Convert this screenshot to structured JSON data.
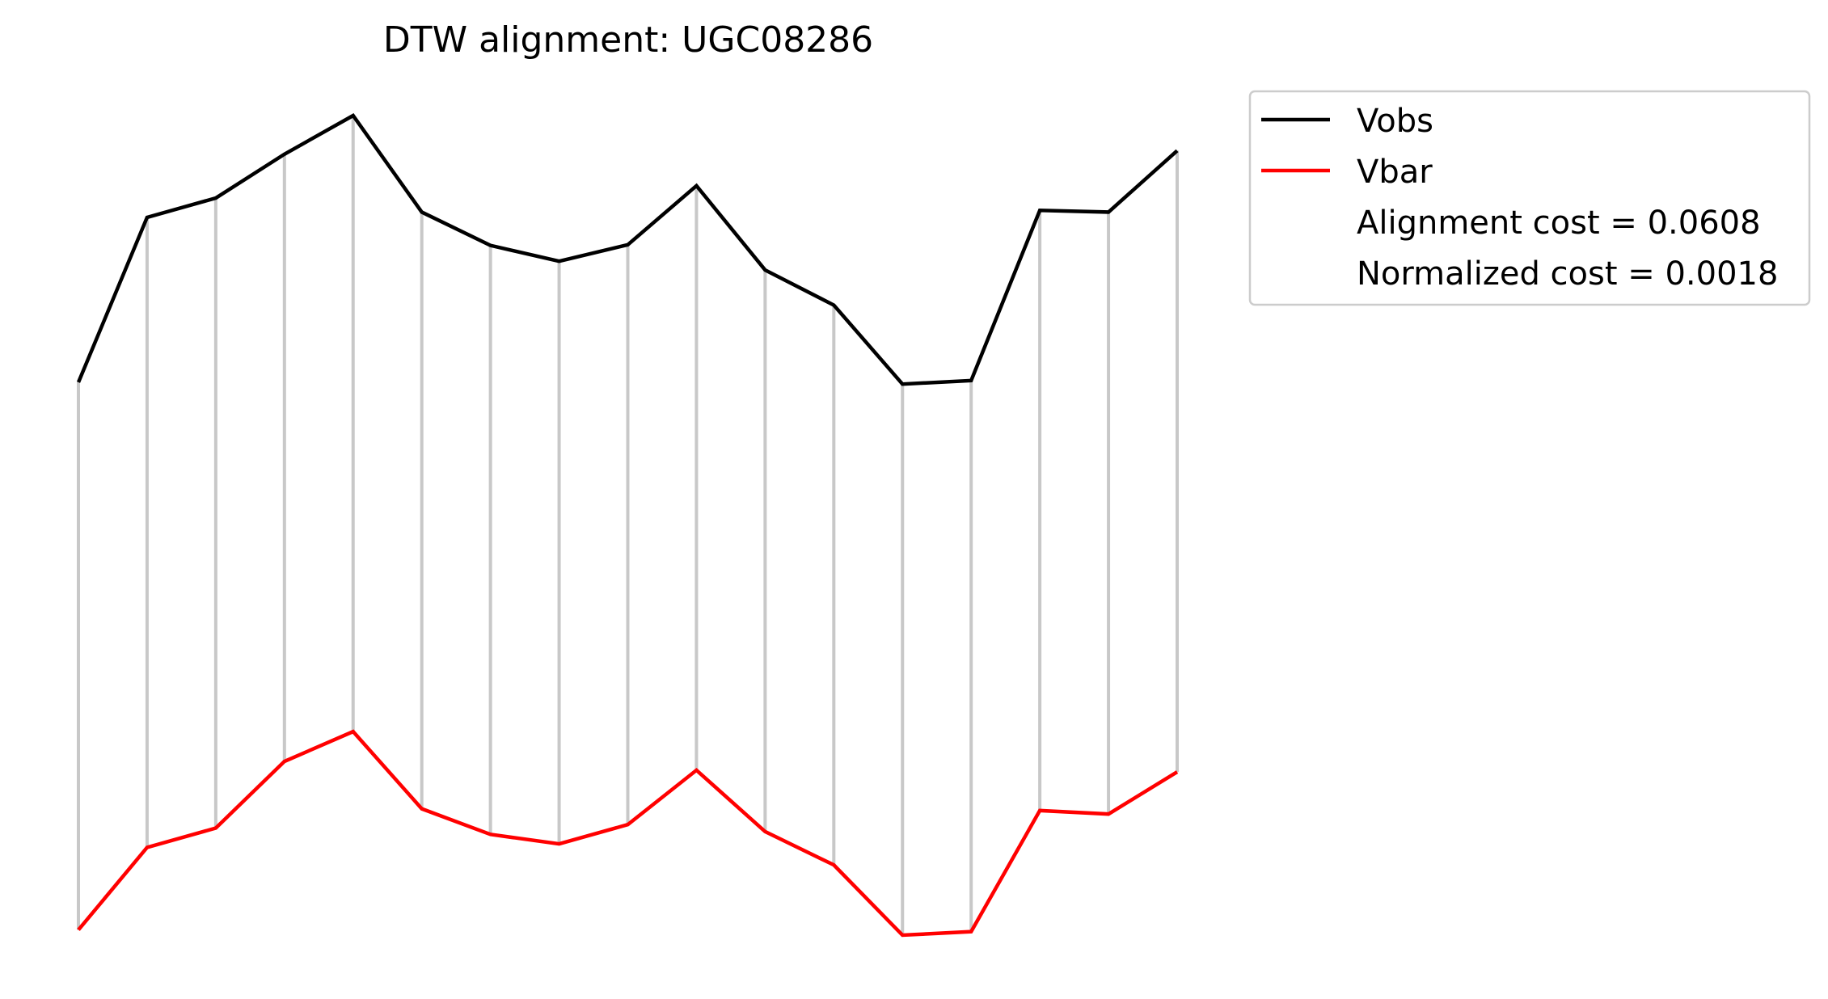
{
  "chart_data": {
    "type": "line",
    "title": "DTW alignment: UGC08286",
    "x": [
      0,
      1,
      2,
      3,
      4,
      5,
      6,
      7,
      8,
      9,
      10,
      11,
      12,
      13,
      14,
      15,
      16
    ],
    "series": [
      {
        "name": "Vobs",
        "color": "#000000",
        "values": [
          0.44,
          0.91,
          0.965,
          1.09,
          1.2,
          0.925,
          0.83,
          0.785,
          0.832,
          1.0,
          0.76,
          0.66,
          0.435,
          0.445,
          0.93,
          0.925,
          1.1
        ]
      },
      {
        "name": "Vbar",
        "color": "#ff0000",
        "values": [
          -1.12,
          -0.885,
          -0.83,
          -0.64,
          -0.555,
          -0.775,
          -0.848,
          -0.875,
          -0.82,
          -0.665,
          -0.84,
          -0.935,
          -1.135,
          -1.125,
          -0.78,
          -0.79,
          -0.67
        ]
      }
    ],
    "alignment_lines": {
      "color": "#c8c8c8",
      "pairs": [
        [
          0,
          0
        ],
        [
          1,
          1
        ],
        [
          2,
          2
        ],
        [
          3,
          3
        ],
        [
          4,
          4
        ],
        [
          5,
          5
        ],
        [
          6,
          6
        ],
        [
          7,
          7
        ],
        [
          8,
          8
        ],
        [
          9,
          9
        ],
        [
          10,
          10
        ],
        [
          11,
          11
        ],
        [
          12,
          12
        ],
        [
          13,
          13
        ],
        [
          14,
          14
        ],
        [
          15,
          15
        ],
        [
          16,
          16
        ]
      ]
    },
    "legend": {
      "placement": "outside-top-right",
      "entries": [
        {
          "label": "Vobs",
          "color": "#000000"
        },
        {
          "label": "Vbar",
          "color": "#ff0000"
        },
        {
          "label": "Alignment cost = 0.0608"
        },
        {
          "label": "Normalized cost = 0.0018"
        }
      ]
    },
    "axes_visible": false,
    "grid": false
  }
}
